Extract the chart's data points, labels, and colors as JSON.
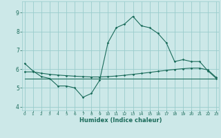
{
  "xlabel": "Humidex (Indice chaleur)",
  "bg_color": "#cce8e8",
  "grid_color": "#99cccc",
  "line_color": "#1a6b5a",
  "series1_x": [
    0,
    1,
    2,
    3,
    4,
    5,
    6,
    7,
    8,
    9,
    10,
    11,
    12,
    13,
    14,
    15,
    16,
    17,
    18,
    19,
    20,
    21,
    22,
    23
  ],
  "series1_y": [
    6.3,
    5.9,
    5.6,
    5.5,
    5.1,
    5.1,
    5.0,
    4.5,
    4.7,
    5.4,
    7.4,
    8.2,
    8.4,
    8.8,
    8.3,
    8.2,
    7.9,
    7.4,
    6.4,
    6.5,
    6.4,
    6.4,
    5.9,
    5.5
  ],
  "series2_x": [
    0,
    1,
    2,
    3,
    4,
    5,
    6,
    7,
    8,
    9,
    10,
    11,
    12,
    13,
    14,
    15,
    16,
    17,
    18,
    19,
    20,
    21,
    22,
    23
  ],
  "series2_y": [
    5.85,
    5.85,
    5.78,
    5.72,
    5.68,
    5.65,
    5.62,
    5.6,
    5.58,
    5.58,
    5.6,
    5.63,
    5.67,
    5.72,
    5.77,
    5.82,
    5.88,
    5.93,
    5.98,
    6.02,
    6.05,
    6.05,
    5.95,
    5.55
  ],
  "series3_x": [
    0,
    23
  ],
  "series3_y": [
    5.5,
    5.5
  ],
  "ylim": [
    3.8,
    9.6
  ],
  "xlim": [
    -0.3,
    23.3
  ],
  "yticks": [
    4,
    5,
    6,
    7,
    8,
    9
  ],
  "xticks": [
    0,
    1,
    2,
    3,
    4,
    5,
    6,
    7,
    8,
    9,
    10,
    11,
    12,
    13,
    14,
    15,
    16,
    17,
    18,
    19,
    20,
    21,
    22,
    23
  ]
}
